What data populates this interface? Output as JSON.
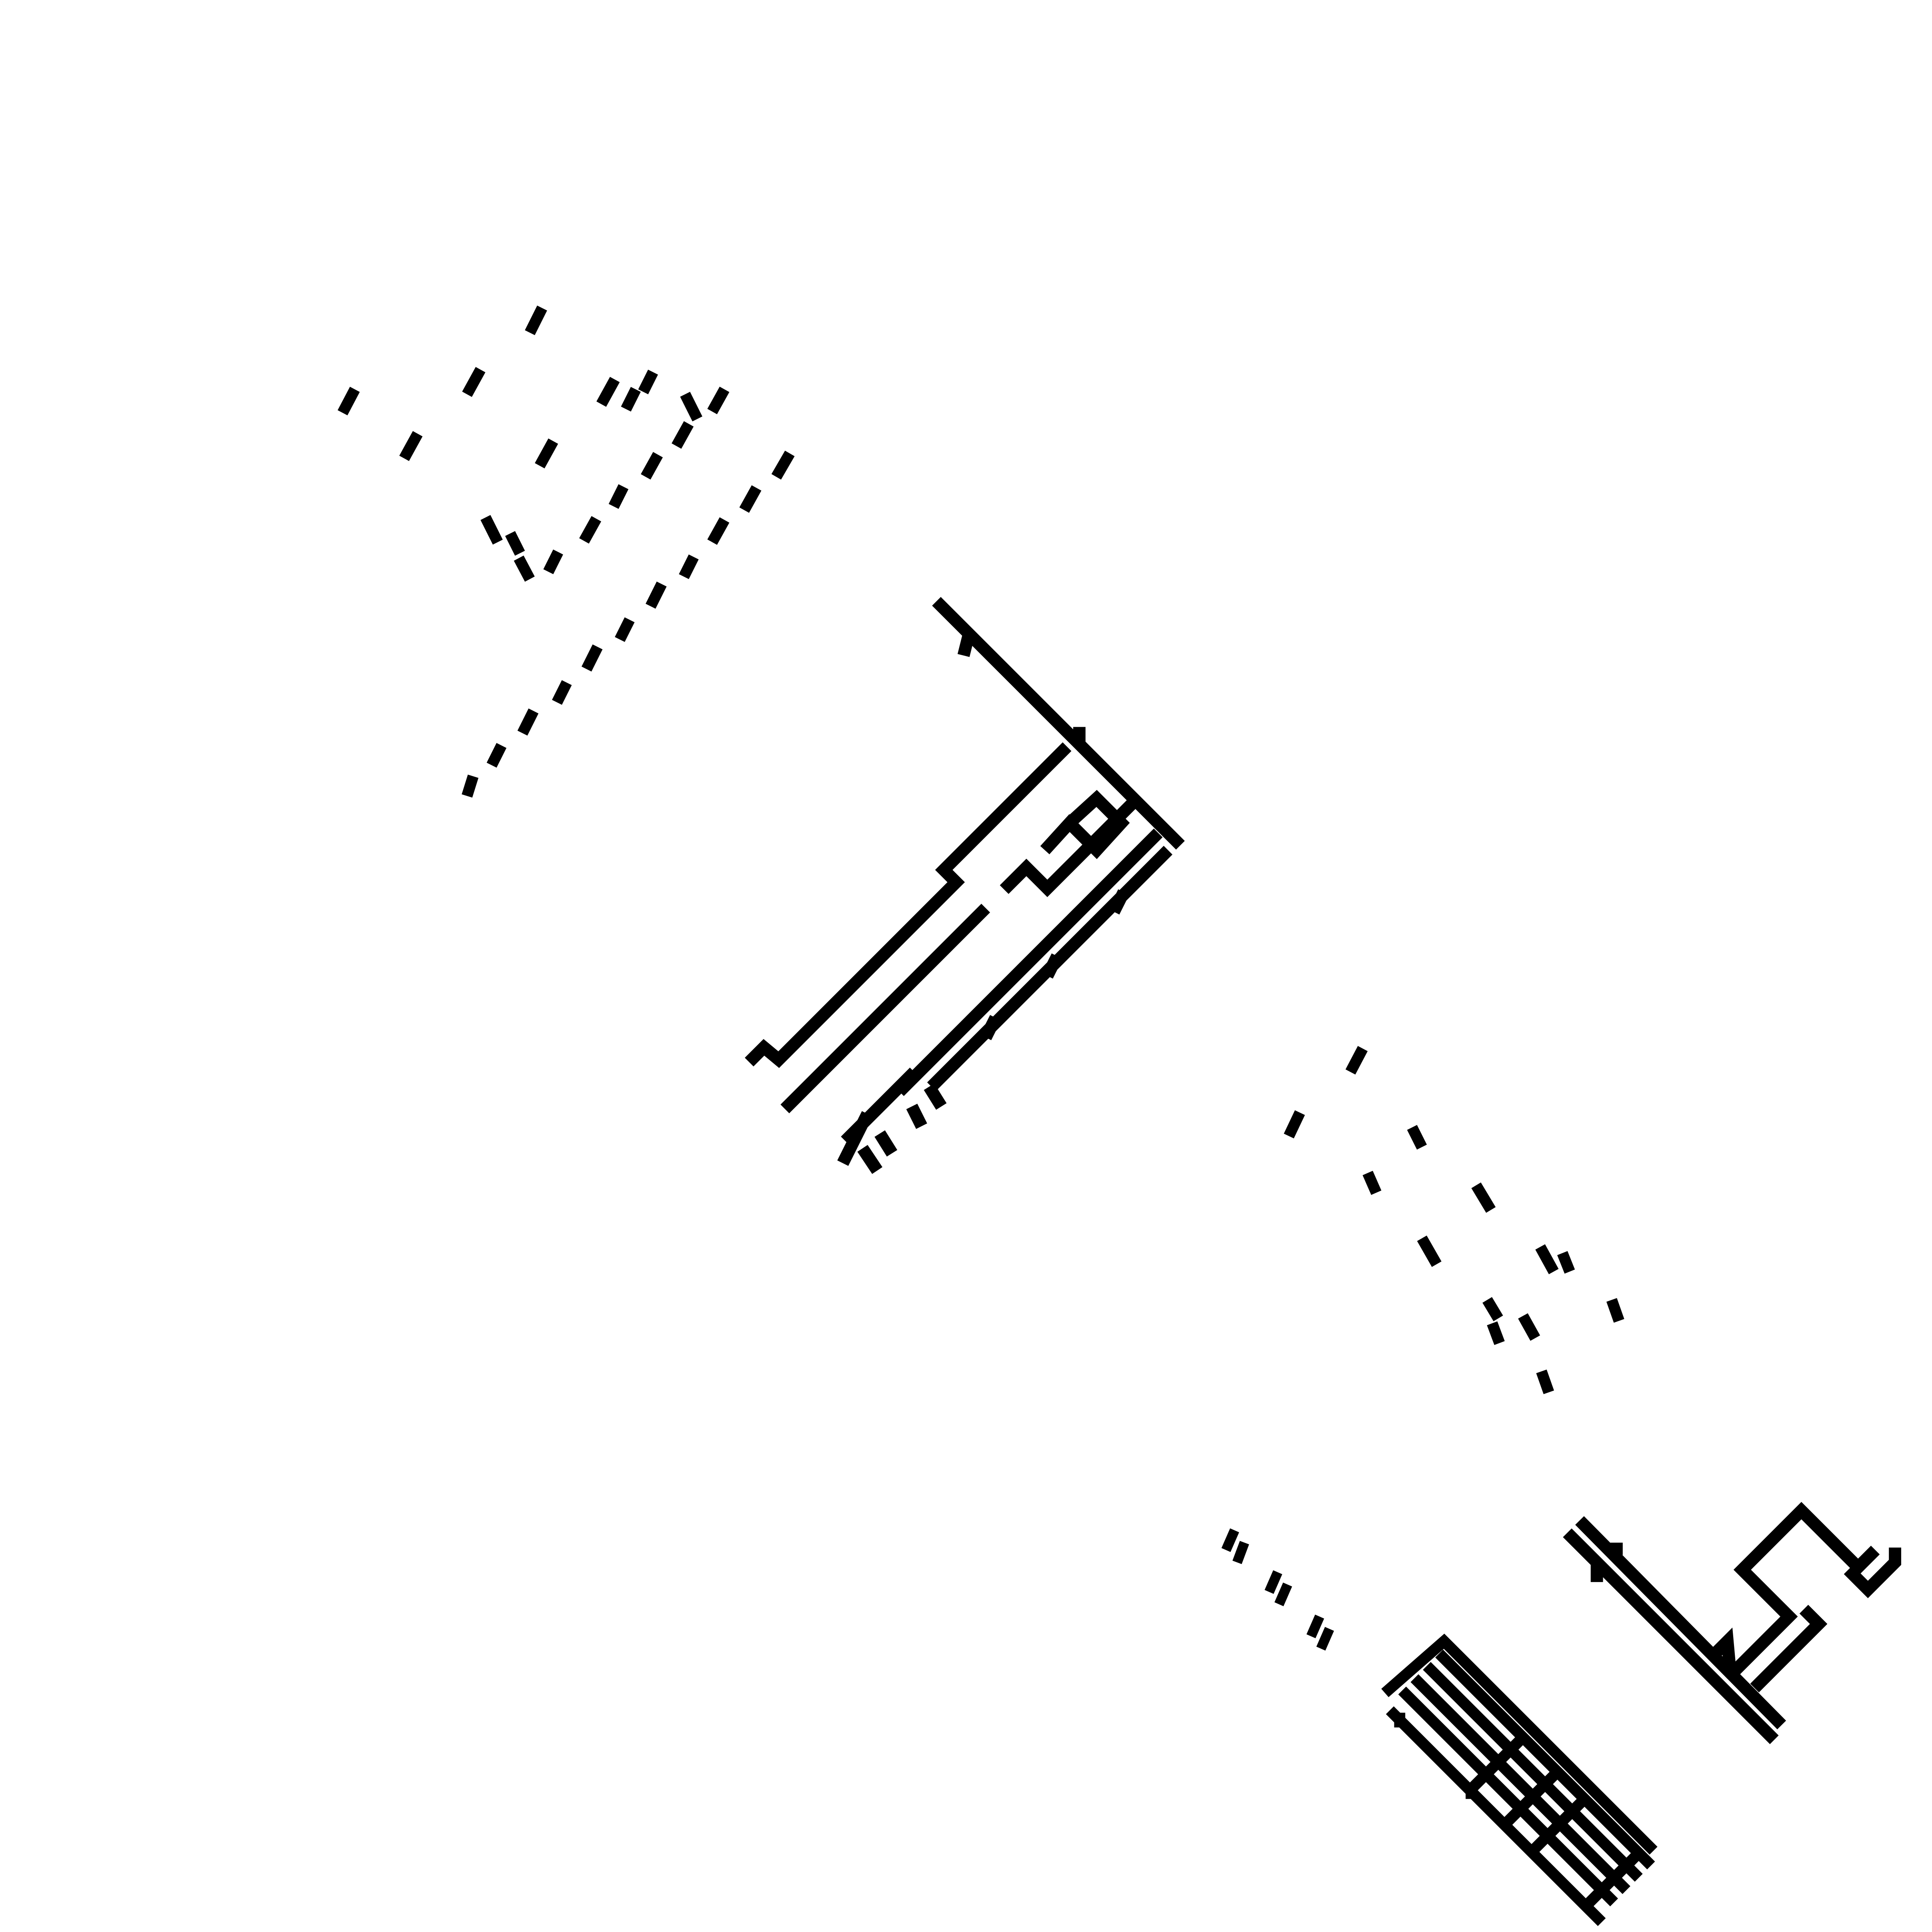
{
  "canvas": {
    "background": "#ffffff",
    "ink": "#000000"
  },
  "figure": {
    "title": "",
    "objects": [
      "dash-glyph-cluster-top-left",
      "bracket-branch-structure-center",
      "dash-glyph-cluster-center-right",
      "dash-glyph-cluster-lower-middle",
      "stair-connector-lower-right",
      "striped-block-lower-right"
    ]
  }
}
